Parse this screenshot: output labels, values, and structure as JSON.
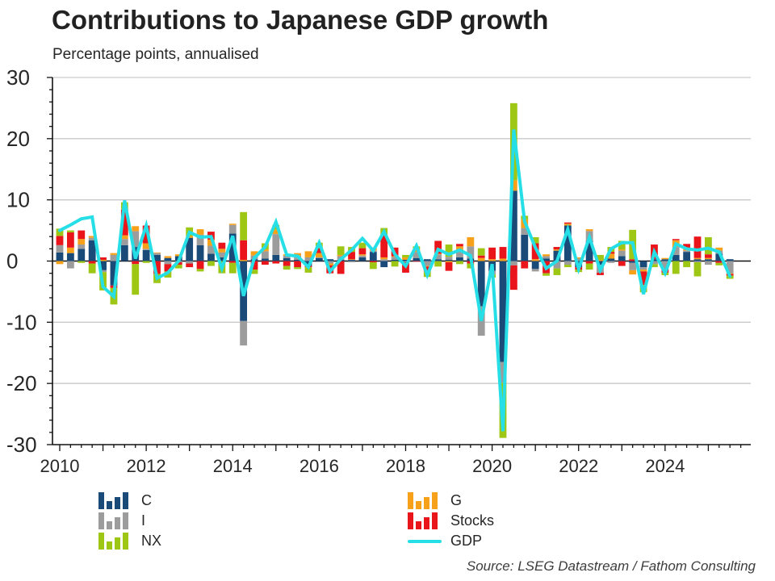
{
  "header": {
    "title": "Contributions to Japanese GDP growth",
    "subtitle": "Percentage points, annualised"
  },
  "source_note": "Source: LSEG Datastream / Fathom Consulting",
  "colors": {
    "C": "#1a4a78",
    "I": "#9c9c9c",
    "NX": "#9ec615",
    "G": "#f7a11a",
    "Stocks": "#e9151b",
    "GDP": "#26dfe6",
    "grid": "#c9c9c9",
    "axis": "#111111",
    "text": "#262626"
  },
  "legend": {
    "left": [
      {
        "series": "C",
        "label": "C"
      },
      {
        "series": "I",
        "label": "I"
      },
      {
        "series": "NX",
        "label": "NX"
      }
    ],
    "right": [
      {
        "series": "G",
        "label": "G"
      },
      {
        "series": "Stocks",
        "label": "Stocks"
      },
      {
        "series": "GDP",
        "label": "GDP"
      }
    ]
  },
  "chart_data": {
    "type": "stacked-bar+line",
    "title": "Contributions to Japanese GDP growth",
    "subtitle": "Percentage points, annualised",
    "xlabel": "",
    "ylabel": "Percentage points, annualised",
    "ylim": [
      -30,
      30
    ],
    "yticks": [
      30,
      20,
      10,
      0,
      -10,
      -20,
      -30
    ],
    "x_labels": [
      "2010",
      "2012",
      "2014",
      "2016",
      "2018",
      "2020",
      "2022",
      "2024"
    ],
    "legend_position": "bottom",
    "grid": true,
    "categories": [
      "2010 Q1",
      "2010 Q2",
      "2010 Q3",
      "2010 Q4",
      "2011 Q1",
      "2011 Q2",
      "2011 Q3",
      "2011 Q4",
      "2012 Q1",
      "2012 Q2",
      "2012 Q3",
      "2012 Q4",
      "2013 Q1",
      "2013 Q2",
      "2013 Q3",
      "2013 Q4",
      "2014 Q1",
      "2014 Q2",
      "2014 Q3",
      "2014 Q4",
      "2015 Q1",
      "2015 Q2",
      "2015 Q3",
      "2015 Q4",
      "2016 Q1",
      "2016 Q2",
      "2016 Q3",
      "2016 Q4",
      "2017 Q1",
      "2017 Q2",
      "2017 Q3",
      "2017 Q4",
      "2018 Q1",
      "2018 Q2",
      "2018 Q3",
      "2018 Q4",
      "2019 Q1",
      "2019 Q2",
      "2019 Q3",
      "2019 Q4",
      "2020 Q1",
      "2020 Q2",
      "2020 Q3",
      "2020 Q4",
      "2021 Q1",
      "2021 Q2",
      "2021 Q3",
      "2021 Q4",
      "2022 Q1",
      "2022 Q2",
      "2022 Q3",
      "2022 Q4",
      "2023 Q1",
      "2023 Q2",
      "2023 Q3",
      "2023 Q4",
      "2024 Q1",
      "2024 Q2",
      "2024 Q3",
      "2024 Q4",
      "2025 Q1",
      "2025 Q2",
      "2025 Q3"
    ],
    "series": [
      {
        "name": "C",
        "color_key": "C",
        "values": [
          1.4,
          1.3,
          2.0,
          3.4,
          -1.5,
          -4.0,
          2.6,
          2.3,
          1.8,
          1.0,
          0.5,
          0.8,
          3.8,
          2.6,
          1.2,
          0.6,
          4.5,
          -9.8,
          0.3,
          0.4,
          1.0,
          0.5,
          0.2,
          -0.8,
          0.5,
          0.3,
          0.2,
          0.2,
          0.6,
          1.5,
          -1.0,
          0.2,
          0.2,
          0.5,
          0.3,
          0.3,
          0.2,
          0.6,
          0.4,
          -7.4,
          -1.6,
          -16.5,
          11.5,
          4.3,
          -1.3,
          0.4,
          1.7,
          5.8,
          -1.0,
          3.3,
          -0.6,
          0.4,
          0.8,
          -0.3,
          -1.0,
          0.3,
          0.3,
          1.0,
          1.5,
          0.3,
          0.3,
          1.2,
          0.3
        ]
      },
      {
        "name": "I",
        "color_key": "I",
        "values": [
          1.2,
          -1.2,
          0.7,
          0.4,
          -0.3,
          1.0,
          1.0,
          2.6,
          0.2,
          0.3,
          -0.5,
          -0.2,
          -0.4,
          1.7,
          1.3,
          0.8,
          1.4,
          -4.0,
          0.6,
          1.2,
          3.4,
          0.4,
          0.7,
          0.6,
          0.1,
          -0.4,
          0.6,
          -0.2,
          0.3,
          0.2,
          0.3,
          0.5,
          -0.2,
          1.0,
          -0.8,
          0.8,
          0.5,
          0.9,
          2.0,
          -4.8,
          -0.6,
          -3.4,
          -0.7,
          1.1,
          -0.4,
          0.4,
          -1.2,
          -0.6,
          0.4,
          1.6,
          -1.3,
          -0.3,
          0.9,
          -1.2,
          -0.4,
          -0.5,
          -1.4,
          1.3,
          0.2,
          -0.2,
          -0.6,
          0.5,
          -2.0
        ]
      },
      {
        "name": "G",
        "color_key": "G",
        "values": [
          -0.5,
          0.9,
          0.9,
          0.3,
          0.2,
          0.3,
          0.6,
          0.8,
          0.9,
          0.1,
          0.3,
          0.3,
          0.3,
          0.9,
          1.0,
          0.6,
          0.2,
          0.2,
          0.7,
          0.3,
          0.7,
          0.2,
          0.4,
          1.0,
          0.7,
          -0.3,
          0.2,
          0.1,
          0.2,
          0.5,
          0.3,
          0.1,
          0.4,
          0.4,
          -0.1,
          0.1,
          -0.2,
          0.9,
          1.5,
          0.5,
          0.3,
          0.4,
          1.7,
          1.4,
          0.3,
          0.3,
          0.2,
          0.3,
          0.2,
          0.3,
          0.2,
          0.8,
          0.2,
          -0.7,
          -0.3,
          0.0,
          0.2,
          1.1,
          0.3,
          0.2,
          0.2,
          0.5,
          -0.1
        ]
      },
      {
        "name": "Stocks",
        "color_key": "Stocks",
        "values": [
          1.5,
          2.5,
          1.4,
          -0.4,
          0.4,
          -0.4,
          4.2,
          -0.5,
          2.9,
          -2.1,
          -1.2,
          -0.4,
          -0.6,
          -1.3,
          1.3,
          1.0,
          -0.3,
          3.2,
          -1.4,
          -0.6,
          -0.4,
          -0.8,
          -1.0,
          -0.2,
          0.8,
          -1.3,
          -2.1,
          1.2,
          1.0,
          -0.2,
          3.6,
          1.4,
          -1.7,
          -0.1,
          -0.8,
          2.1,
          -1.4,
          0.4,
          -0.4,
          0.4,
          1.9,
          1.9,
          -4.0,
          -1.2,
          2.6,
          -2.0,
          0.4,
          0.2,
          -0.4,
          -0.4,
          -0.4,
          0.3,
          -0.8,
          0.3,
          -2.2,
          2.4,
          -0.5,
          0.2,
          0.8,
          3.5,
          0.6,
          -0.3,
          -0.3
        ]
      },
      {
        "name": "NX",
        "color_key": "NX",
        "values": [
          1.2,
          0.3,
          -0.3,
          -1.6,
          -3.0,
          -2.7,
          1.2,
          -5.0,
          -0.3,
          -1.5,
          -1.0,
          -0.6,
          1.4,
          -0.4,
          -0.8,
          -2.0,
          -1.7,
          4.6,
          -0.7,
          1.0,
          0.8,
          -0.6,
          -0.3,
          -0.9,
          0.9,
          0.0,
          1.4,
          0.8,
          0.9,
          -1.1,
          1.2,
          -0.9,
          0.4,
          0.5,
          -0.9,
          -0.9,
          2.0,
          -0.5,
          -0.8,
          1.2,
          -0.5,
          -9.0,
          12.6,
          0.6,
          1.0,
          -0.4,
          -1.1,
          -0.4,
          -0.4,
          -1.0,
          0.8,
          0.8,
          1.4,
          4.8,
          -1.2,
          -0.5,
          -0.4,
          -2.1,
          -1.0,
          -2.3,
          2.8,
          -0.4,
          -0.5
        ]
      }
    ],
    "line_series": {
      "name": "GDP",
      "color_key": "GDP",
      "values": [
        5.0,
        5.9,
        6.9,
        7.2,
        -4.2,
        -5.8,
        9.9,
        0.4,
        5.8,
        -2.8,
        -1.9,
        0.0,
        4.7,
        3.9,
        4.0,
        -1.2,
        4.1,
        -5.7,
        0.5,
        2.3,
        6.4,
        1.0,
        0.8,
        -1.0,
        3.0,
        -1.7,
        0.3,
        1.8,
        3.7,
        1.7,
        4.8,
        1.1,
        -0.8,
        2.5,
        -2.3,
        1.9,
        1.1,
        1.8,
        0.9,
        -9.8,
        -0.5,
        -27.8,
        21.5,
        6.5,
        2.2,
        -1.2,
        0.0,
        5.2,
        -1.3,
        3.9,
        -1.5,
        2.0,
        3.0,
        3.0,
        -5.4,
        1.5,
        -2.0,
        2.8,
        2.0,
        1.8,
        2.1,
        1.5,
        -2.5
      ]
    }
  }
}
